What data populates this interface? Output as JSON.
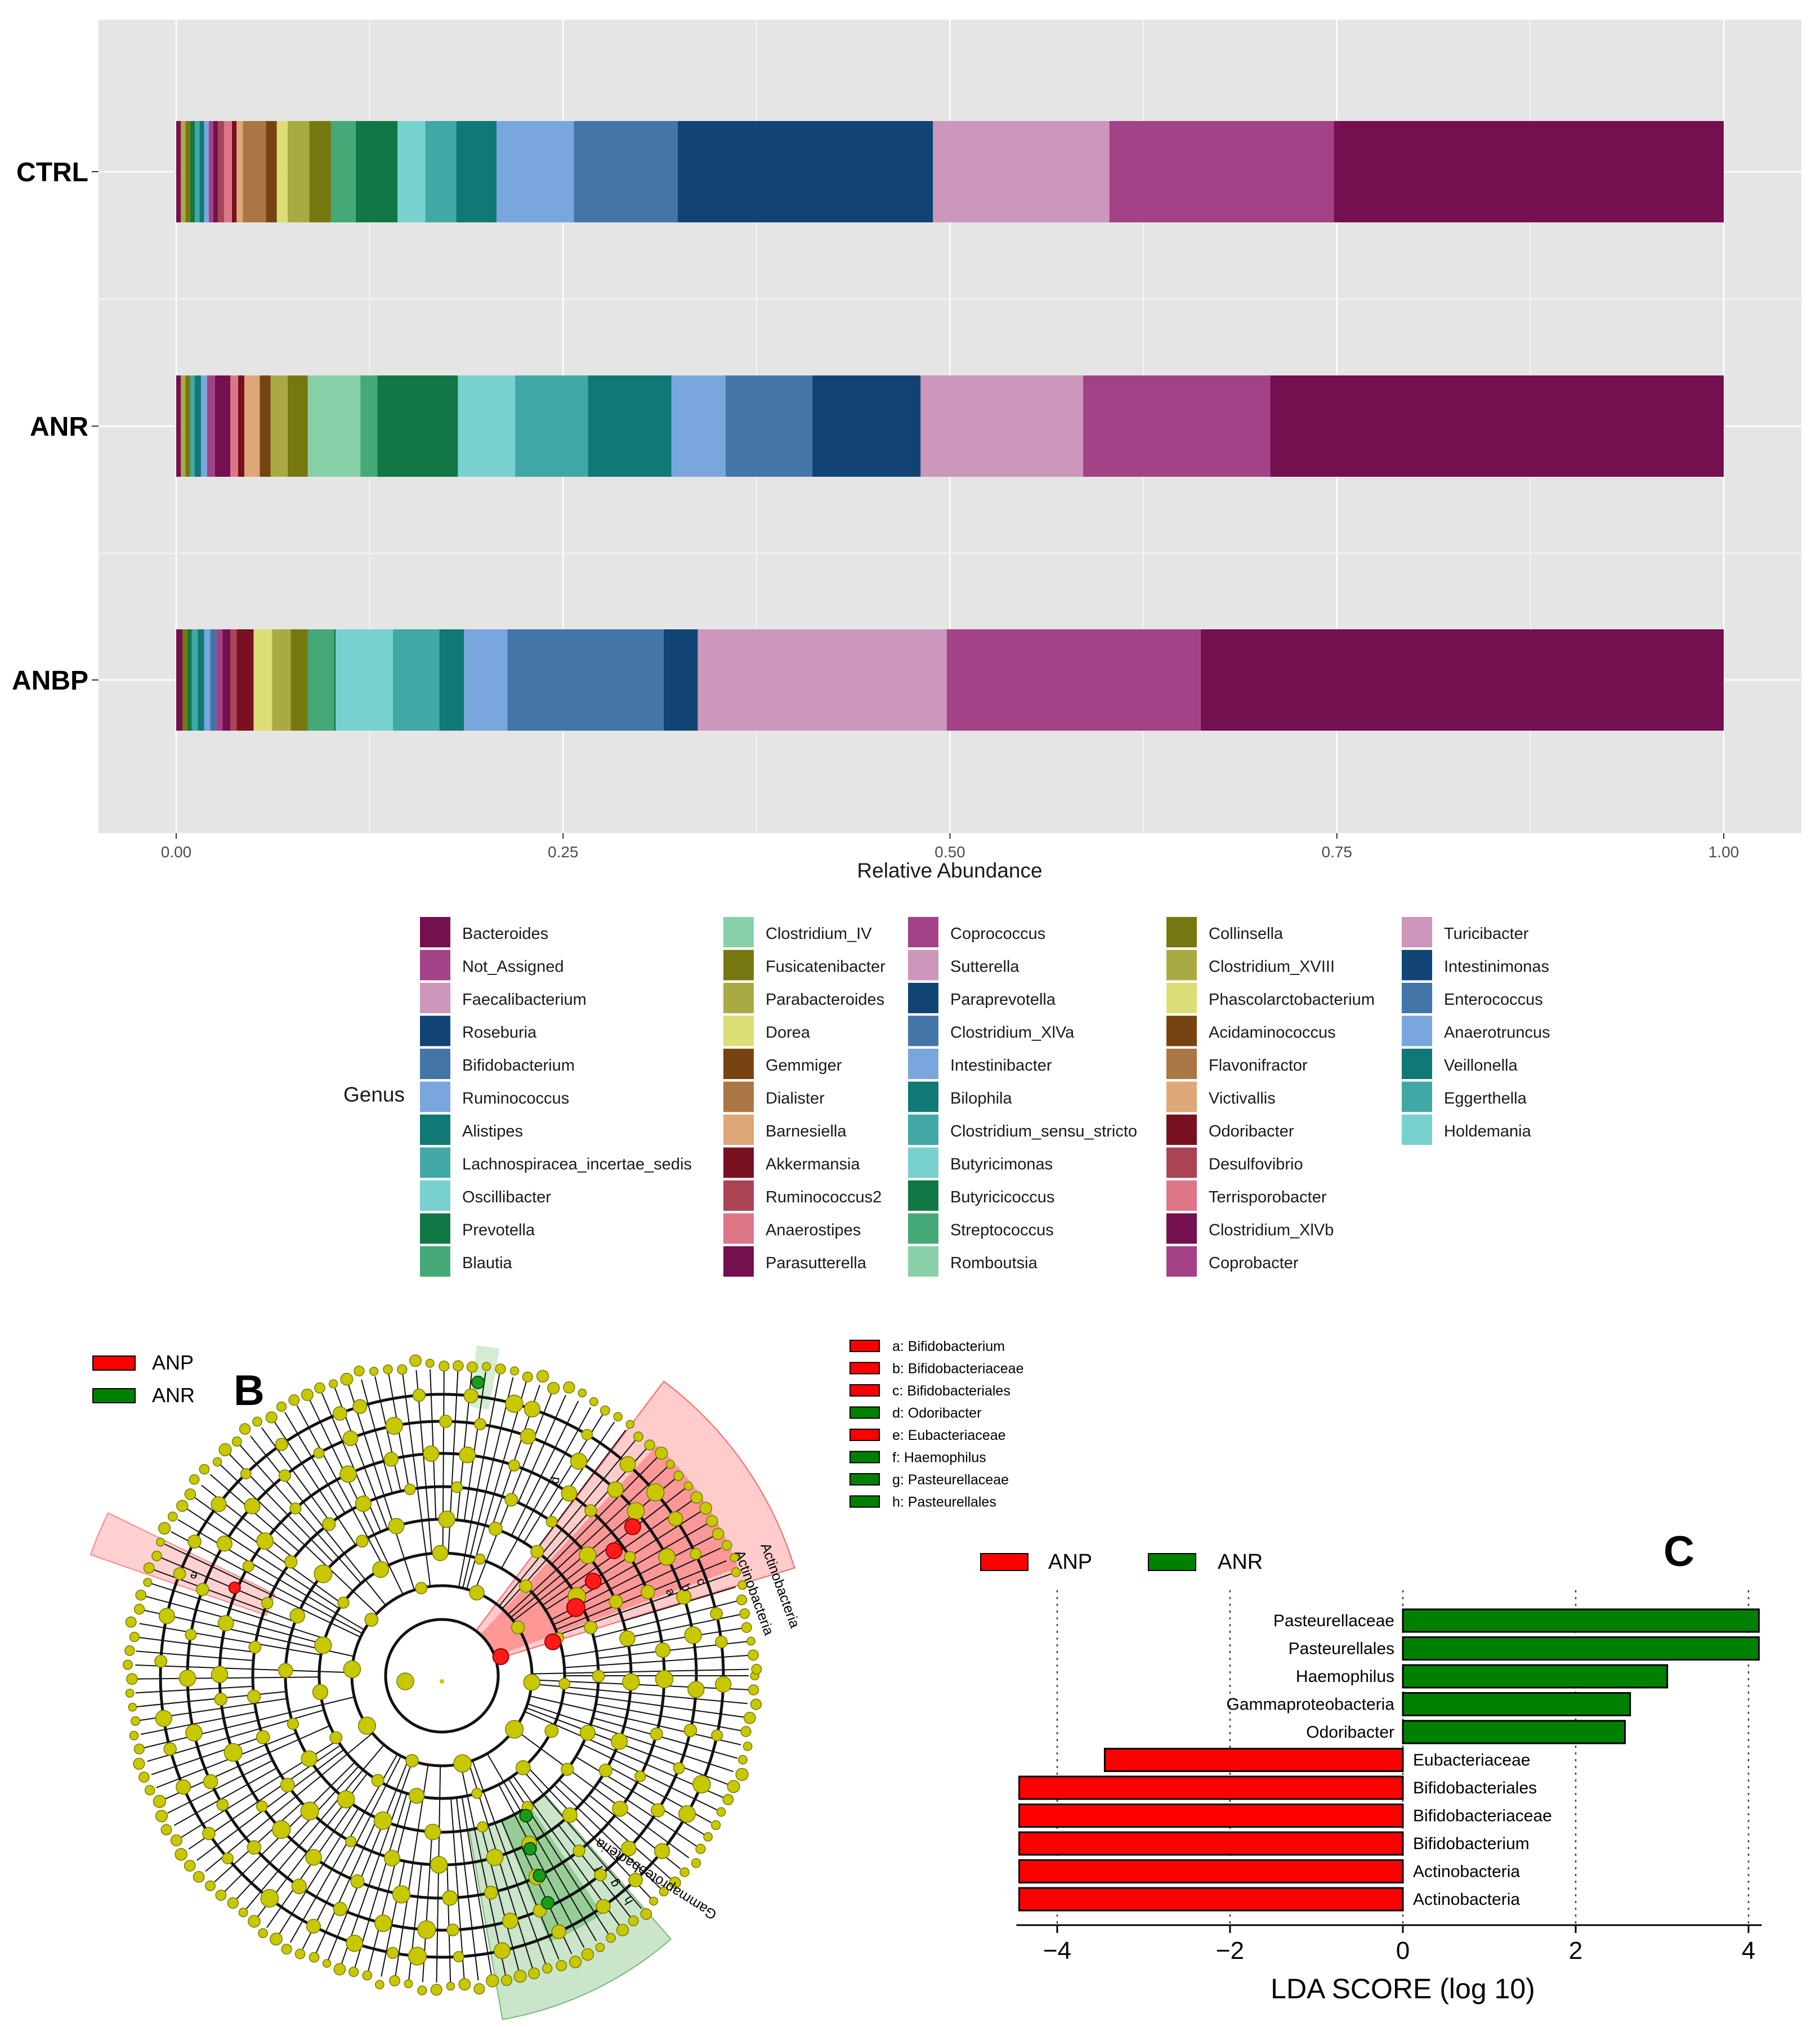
{
  "chart_data": [
    {
      "type": "bar",
      "orientation": "horizontal-stacked",
      "xlabel": "Relative Abundance",
      "xlim": [
        0,
        1
      ],
      "xticks": [
        "0.00",
        "0.25",
        "0.50",
        "0.75",
        "1.00"
      ],
      "grid": true,
      "categories": [
        "CTRL",
        "ANR",
        "ANBP"
      ],
      "legend": {
        "title": "Genus",
        "placement": "bottom",
        "items": [
          {
            "name": "Bacteroides",
            "color": "#740f50"
          },
          {
            "name": "Not_Assigned",
            "color": "#a34287"
          },
          {
            "name": "Faecalibacterium",
            "color": "#cc97ba"
          },
          {
            "name": "Roseburia",
            "color": "#114474"
          },
          {
            "name": "Bifidobacterium",
            "color": "#4475a8"
          },
          {
            "name": "Ruminococcus",
            "color": "#79a7dd"
          },
          {
            "name": "Alistipes",
            "color": "#107875"
          },
          {
            "name": "Lachnospiracea_incertae_sedis",
            "color": "#41a8a5"
          },
          {
            "name": "Oscillibacter",
            "color": "#78d1cf"
          },
          {
            "name": "Prevotella",
            "color": "#117745"
          },
          {
            "name": "Blautia",
            "color": "#44a976"
          },
          {
            "name": "Clostridium_IV",
            "color": "#88d0a7"
          },
          {
            "name": "Fusicatenibacter",
            "color": "#777711"
          },
          {
            "name": "Parabacteroides",
            "color": "#aaaa44"
          },
          {
            "name": "Dorea",
            "color": "#dddd77"
          },
          {
            "name": "Gemmiger",
            "color": "#774411"
          },
          {
            "name": "Dialister",
            "color": "#aa7744"
          },
          {
            "name": "Barnesiella",
            "color": "#dda777"
          },
          {
            "name": "Akkermansia",
            "color": "#771122"
          },
          {
            "name": "Ruminococcus2",
            "color": "#aa4455"
          },
          {
            "name": "Anaerostipes",
            "color": "#dd7788"
          },
          {
            "name": "Parasutterella",
            "color": "#740f50"
          },
          {
            "name": "Coprococcus",
            "color": "#a34287"
          },
          {
            "name": "Sutterella",
            "color": "#cc97ba"
          },
          {
            "name": "Paraprevotella",
            "color": "#114474"
          },
          {
            "name": "Clostridium_XlVa",
            "color": "#4475a8"
          },
          {
            "name": "Intestinibacter",
            "color": "#79a7dd"
          },
          {
            "name": "Bilophila",
            "color": "#107875"
          },
          {
            "name": "Clostridium_sensu_stricto",
            "color": "#41a8a5"
          },
          {
            "name": "Butyricimonas",
            "color": "#78d1cf"
          },
          {
            "name": "Butyricicoccus",
            "color": "#117745"
          },
          {
            "name": "Streptococcus",
            "color": "#44a976"
          },
          {
            "name": "Romboutsia",
            "color": "#88d0a7"
          },
          {
            "name": "Collinsella",
            "color": "#777711"
          },
          {
            "name": "Clostridium_XVIII",
            "color": "#aaaa44"
          },
          {
            "name": "Phascolarctobacterium",
            "color": "#dddd77"
          },
          {
            "name": "Acidaminococcus",
            "color": "#774411"
          },
          {
            "name": "Flavonifractor",
            "color": "#aa7744"
          },
          {
            "name": "Victivallis",
            "color": "#dda777"
          },
          {
            "name": "Odoribacter",
            "color": "#771122"
          },
          {
            "name": "Desulfovibrio",
            "color": "#aa4455"
          },
          {
            "name": "Terrisporobacter",
            "color": "#dd7788"
          },
          {
            "name": "Clostridium_XlVb",
            "color": "#740f50"
          },
          {
            "name": "Coprobacter",
            "color": "#a34287"
          },
          {
            "name": "Turicibacter",
            "color": "#cc97ba"
          },
          {
            "name": "Intestinimonas",
            "color": "#114474"
          },
          {
            "name": "Enterococcus",
            "color": "#4475a8"
          },
          {
            "name": "Anaerotruncus",
            "color": "#79a7dd"
          },
          {
            "name": "Veillonella",
            "color": "#107875"
          },
          {
            "name": "Eggerthella",
            "color": "#41a8a5"
          },
          {
            "name": "Holdemania",
            "color": "#78d1cf"
          }
        ]
      },
      "series_by_category": {
        "CTRL": [
          {
            "genus": "Bacteroides",
            "start": 0.748,
            "end": 1.0
          },
          {
            "genus": "Not_Assigned",
            "start": 0.603,
            "end": 0.748
          },
          {
            "genus": "Faecalibacterium",
            "start": 0.489,
            "end": 0.603
          },
          {
            "genus": "Roseburia",
            "start": 0.324,
            "end": 0.489
          },
          {
            "genus": "Bifidobacterium",
            "start": 0.257,
            "end": 0.324
          },
          {
            "genus": "Ruminococcus",
            "start": 0.207,
            "end": 0.257
          },
          {
            "genus": "Alistipes",
            "start": 0.181,
            "end": 0.207
          },
          {
            "genus": "Lachnospiracea_incertae_sedis",
            "start": 0.161,
            "end": 0.181
          },
          {
            "genus": "Oscillibacter",
            "start": 0.143,
            "end": 0.161
          },
          {
            "genus": "Prevotella",
            "start": 0.116,
            "end": 0.143
          },
          {
            "genus": "Blautia",
            "start": 0.1,
            "end": 0.116
          },
          {
            "genus": "Fusicatenibacter",
            "start": 0.086,
            "end": 0.1
          },
          {
            "genus": "Parabacteroides",
            "start": 0.072,
            "end": 0.086
          },
          {
            "genus": "Dorea",
            "start": 0.065,
            "end": 0.072
          },
          {
            "genus": "Gemmiger",
            "start": 0.058,
            "end": 0.065
          },
          {
            "genus": "Dialister",
            "start": 0.043,
            "end": 0.058
          },
          {
            "genus": "Barnesiella",
            "start": 0.039,
            "end": 0.043
          },
          {
            "genus": "Akkermansia",
            "start": 0.036,
            "end": 0.039
          },
          {
            "genus": "Anaerostipes",
            "start": 0.031,
            "end": 0.036
          },
          {
            "genus": "Ruminococcus2",
            "start": 0.027,
            "end": 0.031
          },
          {
            "genus": "Parasutterella",
            "start": 0.024,
            "end": 0.027
          },
          {
            "genus": "Coprococcus",
            "start": 0.021,
            "end": 0.024
          },
          {
            "genus": "Intestinibacter",
            "start": 0.018,
            "end": 0.021
          },
          {
            "genus": "Bilophila",
            "start": 0.015,
            "end": 0.018
          },
          {
            "genus": "Clostridium_sensu_stricto",
            "start": 0.012,
            "end": 0.015
          },
          {
            "genus": "Butyricicoccus",
            "start": 0.009,
            "end": 0.012
          },
          {
            "genus": "Collinsella",
            "start": 0.006,
            "end": 0.009
          },
          {
            "genus": "Clostridium_XVIII",
            "start": 0.003,
            "end": 0.006
          },
          {
            "genus": "Clostridium_XlVb",
            "start": 0.0,
            "end": 0.003
          }
        ],
        "ANR": [
          {
            "genus": "Bacteroides",
            "start": 0.707,
            "end": 1.0
          },
          {
            "genus": "Not_Assigned",
            "start": 0.586,
            "end": 0.707
          },
          {
            "genus": "Faecalibacterium",
            "start": 0.481,
            "end": 0.586
          },
          {
            "genus": "Roseburia",
            "start": 0.411,
            "end": 0.481
          },
          {
            "genus": "Bifidobacterium",
            "start": 0.355,
            "end": 0.411
          },
          {
            "genus": "Ruminococcus",
            "start": 0.32,
            "end": 0.355
          },
          {
            "genus": "Alistipes",
            "start": 0.266,
            "end": 0.32
          },
          {
            "genus": "Lachnospiracea_incertae_sedis",
            "start": 0.219,
            "end": 0.266
          },
          {
            "genus": "Oscillibacter",
            "start": 0.182,
            "end": 0.219
          },
          {
            "genus": "Prevotella",
            "start": 0.13,
            "end": 0.182
          },
          {
            "genus": "Blautia",
            "start": 0.119,
            "end": 0.13
          },
          {
            "genus": "Clostridium_IV",
            "start": 0.085,
            "end": 0.119
          },
          {
            "genus": "Fusicatenibacter",
            "start": 0.072,
            "end": 0.085
          },
          {
            "genus": "Parabacteroides",
            "start": 0.061,
            "end": 0.072
          },
          {
            "genus": "Gemmiger",
            "start": 0.054,
            "end": 0.061
          },
          {
            "genus": "Barnesiella",
            "start": 0.044,
            "end": 0.054
          },
          {
            "genus": "Akkermansia",
            "start": 0.04,
            "end": 0.044
          },
          {
            "genus": "Anaerostipes",
            "start": 0.035,
            "end": 0.04
          },
          {
            "genus": "Parasutterella",
            "start": 0.025,
            "end": 0.035
          },
          {
            "genus": "Coprococcus",
            "start": 0.02,
            "end": 0.025
          },
          {
            "genus": "Intestinibacter",
            "start": 0.016,
            "end": 0.02
          },
          {
            "genus": "Bilophila",
            "start": 0.012,
            "end": 0.016
          },
          {
            "genus": "Clostridium_sensu_stricto",
            "start": 0.009,
            "end": 0.012
          },
          {
            "genus": "Collinsella",
            "start": 0.006,
            "end": 0.009
          },
          {
            "genus": "Clostridium_XVIII",
            "start": 0.003,
            "end": 0.006
          },
          {
            "genus": "Clostridium_XlVb",
            "start": 0.0,
            "end": 0.003
          }
        ],
        "ANBP": [
          {
            "genus": "Bacteroides",
            "start": 0.662,
            "end": 1.0
          },
          {
            "genus": "Not_Assigned",
            "start": 0.498,
            "end": 0.662
          },
          {
            "genus": "Faecalibacterium",
            "start": 0.337,
            "end": 0.498
          },
          {
            "genus": "Roseburia",
            "start": 0.315,
            "end": 0.337
          },
          {
            "genus": "Bifidobacterium",
            "start": 0.214,
            "end": 0.315
          },
          {
            "genus": "Ruminococcus",
            "start": 0.186,
            "end": 0.214
          },
          {
            "genus": "Alistipes",
            "start": 0.17,
            "end": 0.186
          },
          {
            "genus": "Lachnospiracea_incertae_sedis",
            "start": 0.14,
            "end": 0.17
          },
          {
            "genus": "Oscillibacter",
            "start": 0.103,
            "end": 0.14
          },
          {
            "genus": "Prevotella",
            "start": 0.102,
            "end": 0.103
          },
          {
            "genus": "Blautia",
            "start": 0.085,
            "end": 0.102
          },
          {
            "genus": "Fusicatenibacter",
            "start": 0.074,
            "end": 0.085
          },
          {
            "genus": "Parabacteroides",
            "start": 0.062,
            "end": 0.074
          },
          {
            "genus": "Dorea",
            "start": 0.05,
            "end": 0.062
          },
          {
            "genus": "Akkermansia",
            "start": 0.039,
            "end": 0.05
          },
          {
            "genus": "Ruminococcus2",
            "start": 0.035,
            "end": 0.039
          },
          {
            "genus": "Parasutterella",
            "start": 0.03,
            "end": 0.035
          },
          {
            "genus": "Coprococcus",
            "start": 0.026,
            "end": 0.03
          },
          {
            "genus": "Clostridium_XlVa",
            "start": 0.022,
            "end": 0.026
          },
          {
            "genus": "Intestinibacter",
            "start": 0.018,
            "end": 0.022
          },
          {
            "genus": "Bilophila",
            "start": 0.014,
            "end": 0.018
          },
          {
            "genus": "Clostridium_sensu_stricto",
            "start": 0.01,
            "end": 0.014
          },
          {
            "genus": "Butyricicoccus",
            "start": 0.007,
            "end": 0.01
          },
          {
            "genus": "Collinsella",
            "start": 0.004,
            "end": 0.007
          },
          {
            "genus": "Clostridium_XlVb",
            "start": 0.0,
            "end": 0.004
          }
        ]
      }
    },
    {
      "type": "diagram",
      "panel_label": "B",
      "legend": [
        {
          "name": "ANP",
          "color": "#ff0000"
        },
        {
          "name": "ANR",
          "color": "#008000"
        }
      ],
      "key_items": [
        {
          "letter": "a",
          "label": "a: Bifidobacterium",
          "color": "#ff0000"
        },
        {
          "letter": "b",
          "label": "b: Bifidobacteriaceae",
          "color": "#ff0000"
        },
        {
          "letter": "c",
          "label": "c: Bifidobacteriales",
          "color": "#ff0000"
        },
        {
          "letter": "d",
          "label": "d: Odoribacter",
          "color": "#008000"
        },
        {
          "letter": "e",
          "label": "e: Eubacteriaceae",
          "color": "#ff0000"
        },
        {
          "letter": "f",
          "label": "f: Haemophilus",
          "color": "#008000"
        },
        {
          "letter": "g",
          "label": "g: Pasteurellaceae",
          "color": "#008000"
        },
        {
          "letter": "h",
          "label": "h: Pasteurellales",
          "color": "#008000"
        }
      ],
      "sector_labels": [
        "Actinobacteria",
        "Actinobacteria",
        "Gammaproteobacteria"
      ],
      "letter_labels": [
        "a",
        "b",
        "c",
        "d",
        "e",
        "f",
        "g",
        "h"
      ]
    },
    {
      "type": "bar",
      "orientation": "horizontal",
      "panel_label": "C",
      "xlabel": "LDA SCORE (log 10)",
      "xlim": [
        -5,
        4.5
      ],
      "xticks": [
        "−4",
        "−2",
        "0",
        "2",
        "4"
      ],
      "xtick_values": [
        -4,
        -2,
        0,
        2,
        4
      ],
      "grid": true,
      "legend": [
        {
          "name": "ANP",
          "color": "#ff0000"
        },
        {
          "name": "ANR",
          "color": "#008000"
        }
      ],
      "categories": [
        "Pasteurellaceae",
        "Pasteurellales",
        "Haemophilus",
        "Gammaproteobacteria",
        "Odoribacter",
        "Eubacteriaceae",
        "Bifidobacteriales",
        "Bifidobacteriaceae",
        "Bifidobacterium",
        "Actinobacteria",
        "Actinobacteria"
      ],
      "values": [
        4.12,
        4.12,
        3.06,
        2.63,
        2.57,
        -3.45,
        -4.44,
        -4.44,
        -4.44,
        -4.44,
        -4.44
      ],
      "groups": [
        "ANR",
        "ANR",
        "ANR",
        "ANR",
        "ANR",
        "ANP",
        "ANP",
        "ANP",
        "ANP",
        "ANP",
        "ANP"
      ]
    }
  ]
}
